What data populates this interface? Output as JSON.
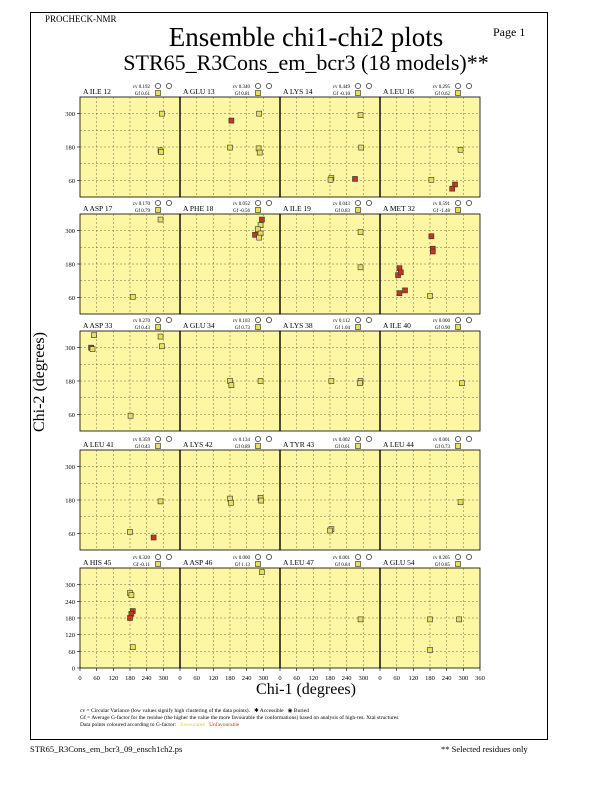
{
  "header": {
    "program": "PROCHECK-NMR",
    "page": "Page  1",
    "title": "Ensemble chi1-chi2 plots",
    "subtitle": "STR65_R3Cons_em_bcr3 (18 models)**"
  },
  "footer": {
    "filename": "STR65_R3Cons_em_bcr3_09_ensch1ch2.ps",
    "selected_note": "** Selected residues only"
  },
  "notes": {
    "line1": "cv = Circular Variance (low values signify high clustering of the data points).",
    "accessible": "Accessible",
    "buried": "Buried",
    "line2": "Gf = Average G-factor for the residue (the higher the value the more favourable the conformations) based on analysis of high-res. Xtal structures",
    "line3": "Data points coloured according to G-factor:",
    "favourable": "Favourable",
    "unfavourable": "Unfavourable"
  },
  "colors": {
    "panel_bg": "#fdf6a3",
    "favourable": "#e6e05a",
    "unfavourable": "#c0391b",
    "grid": "#444444"
  },
  "chart_data": {
    "type": "scatter",
    "xlabel": "Chi-1 (degrees)",
    "ylabel": "Chi-2 (degrees)",
    "xlim": [
      0,
      360
    ],
    "ylim": [
      0,
      360
    ],
    "x_ticks": [
      "0",
      "60",
      "120",
      "180",
      "240",
      "300",
      "360"
    ],
    "panel_x_ticks": [
      "0",
      "60",
      "180",
      "300"
    ],
    "y_ticks": [
      "60",
      "180",
      "300"
    ],
    "bottom_y_ticks": [
      "0",
      "60",
      "120",
      "180",
      "240",
      "300"
    ],
    "grid": true,
    "panels": [
      {
        "label": "A ILE 12",
        "cv": "cv 0.192",
        "gf": "Gf 0.61",
        "points": [
          [
            295,
            300,
            0
          ],
          [
            290,
            168,
            0
          ],
          [
            292,
            162,
            0
          ]
        ]
      },
      {
        "label": "A GLU 13",
        "cv": "cv 0.340",
        "gf": "Gf 0.81",
        "points": [
          [
            185,
            275,
            1
          ],
          [
            285,
            300,
            0
          ],
          [
            180,
            178,
            0
          ],
          [
            283,
            175,
            0
          ],
          [
            287,
            160,
            0
          ]
        ]
      },
      {
        "label": "A LYS 14",
        "cv": "cv 0.449",
        "gf": "Gf -0.10",
        "points": [
          [
            290,
            295,
            0
          ],
          [
            292,
            178,
            0
          ],
          [
            185,
            68,
            0
          ],
          [
            182,
            62,
            0
          ],
          [
            270,
            65,
            1
          ]
        ]
      },
      {
        "label": "A LEU 16",
        "cv": "cv 0.295",
        "gf": "Gf 0.62",
        "points": [
          [
            290,
            170,
            0
          ],
          [
            185,
            62,
            0
          ],
          [
            270,
            45,
            1
          ],
          [
            260,
            30,
            1
          ]
        ]
      },
      {
        "label": "A ASP 17",
        "cv": "cv 0.170",
        "gf": "Gf 0.79",
        "points": [
          [
            290,
            340,
            0
          ],
          [
            190,
            62,
            0
          ]
        ]
      },
      {
        "label": "A PHE 18",
        "cv": "cv 0.052",
        "gf": "Gf -0.56",
        "points": [
          [
            295,
            340,
            1
          ],
          [
            290,
            320,
            0
          ],
          [
            280,
            305,
            0
          ],
          [
            270,
            285,
            1
          ],
          [
            290,
            290,
            0
          ],
          [
            285,
            275,
            0
          ]
        ]
      },
      {
        "label": "A ILE 19",
        "cv": "cv 0.043",
        "gf": "Gf 0.83",
        "points": [
          [
            290,
            295,
            0
          ],
          [
            290,
            168,
            0
          ]
        ]
      },
      {
        "label": "A MET 32",
        "cv": "cv 0.591",
        "gf": "Gf -1.48",
        "points": [
          [
            70,
            165,
            1
          ],
          [
            65,
            140,
            1
          ],
          [
            75,
            150,
            1
          ],
          [
            70,
            75,
            1
          ],
          [
            90,
            85,
            1
          ],
          [
            185,
            280,
            1
          ],
          [
            190,
            235,
            1
          ],
          [
            190,
            225,
            1
          ],
          [
            180,
            65,
            0
          ]
        ]
      },
      {
        "label": "A ASP 33",
        "cv": "cv 0.270",
        "gf": "Gf 0.43",
        "points": [
          [
            50,
            345,
            0
          ],
          [
            40,
            300,
            1
          ],
          [
            45,
            295,
            0
          ],
          [
            290,
            340,
            0
          ],
          [
            295,
            305,
            0
          ],
          [
            182,
            55,
            0
          ]
        ]
      },
      {
        "label": "A GLU 34",
        "cv": "cv 0.103",
        "gf": "Gf 0.73",
        "points": [
          [
            180,
            180,
            0
          ],
          [
            185,
            165,
            0
          ],
          [
            290,
            180,
            0
          ]
        ]
      },
      {
        "label": "A LYS 38",
        "cv": "cv 0.112",
        "gf": "Gf 1.04",
        "points": [
          [
            185,
            180,
            0
          ],
          [
            290,
            180,
            0
          ],
          [
            288,
            172,
            0
          ]
        ]
      },
      {
        "label": "A ILE 40",
        "cv": "cv 0.000",
        "gf": "Gf 0.90",
        "points": [
          [
            295,
            172,
            0
          ]
        ]
      },
      {
        "label": "A LEU 41",
        "cv": "cv 0.359",
        "gf": "Gf 0.43",
        "points": [
          [
            290,
            175,
            0
          ],
          [
            180,
            65,
            0
          ],
          [
            265,
            45,
            1
          ]
        ]
      },
      {
        "label": "A LYS 42",
        "cv": "cv 0.134",
        "gf": "Gf 0.89",
        "points": [
          [
            180,
            185,
            0
          ],
          [
            183,
            170,
            0
          ],
          [
            290,
            188,
            0
          ],
          [
            292,
            178,
            0
          ]
        ]
      },
      {
        "label": "A TYR 43",
        "cv": "cv 0.002",
        "gf": "Gf 0.61",
        "points": [
          [
            185,
            75,
            0
          ],
          [
            180,
            70,
            0
          ]
        ]
      },
      {
        "label": "A LEU 44",
        "cv": "cv 0.001",
        "gf": "Gf 0.73",
        "points": [
          [
            290,
            172,
            0
          ]
        ]
      },
      {
        "label": "A HIS 45",
        "cv": "cv 0.320",
        "gf": "Gf -0.11",
        "points": [
          [
            180,
            270,
            0
          ],
          [
            185,
            262,
            0
          ],
          [
            190,
            205,
            1
          ],
          [
            185,
            195,
            1
          ],
          [
            180,
            180,
            1
          ],
          [
            190,
            75,
            0
          ]
        ]
      },
      {
        "label": "A ASP 46",
        "cv": "cv 0.000",
        "gf": "Gf 1.13",
        "points": [
          [
            295,
            345,
            0
          ]
        ]
      },
      {
        "label": "A LEU 47",
        "cv": "cv 0.001",
        "gf": "Gf 0.84",
        "points": [
          [
            290,
            175,
            0
          ]
        ]
      },
      {
        "label": "A GLU 54",
        "cv": "cv 0.205",
        "gf": "Gf 0.85",
        "points": [
          [
            180,
            175,
            0
          ],
          [
            285,
            175,
            0
          ],
          [
            180,
            65,
            0
          ]
        ]
      }
    ]
  }
}
